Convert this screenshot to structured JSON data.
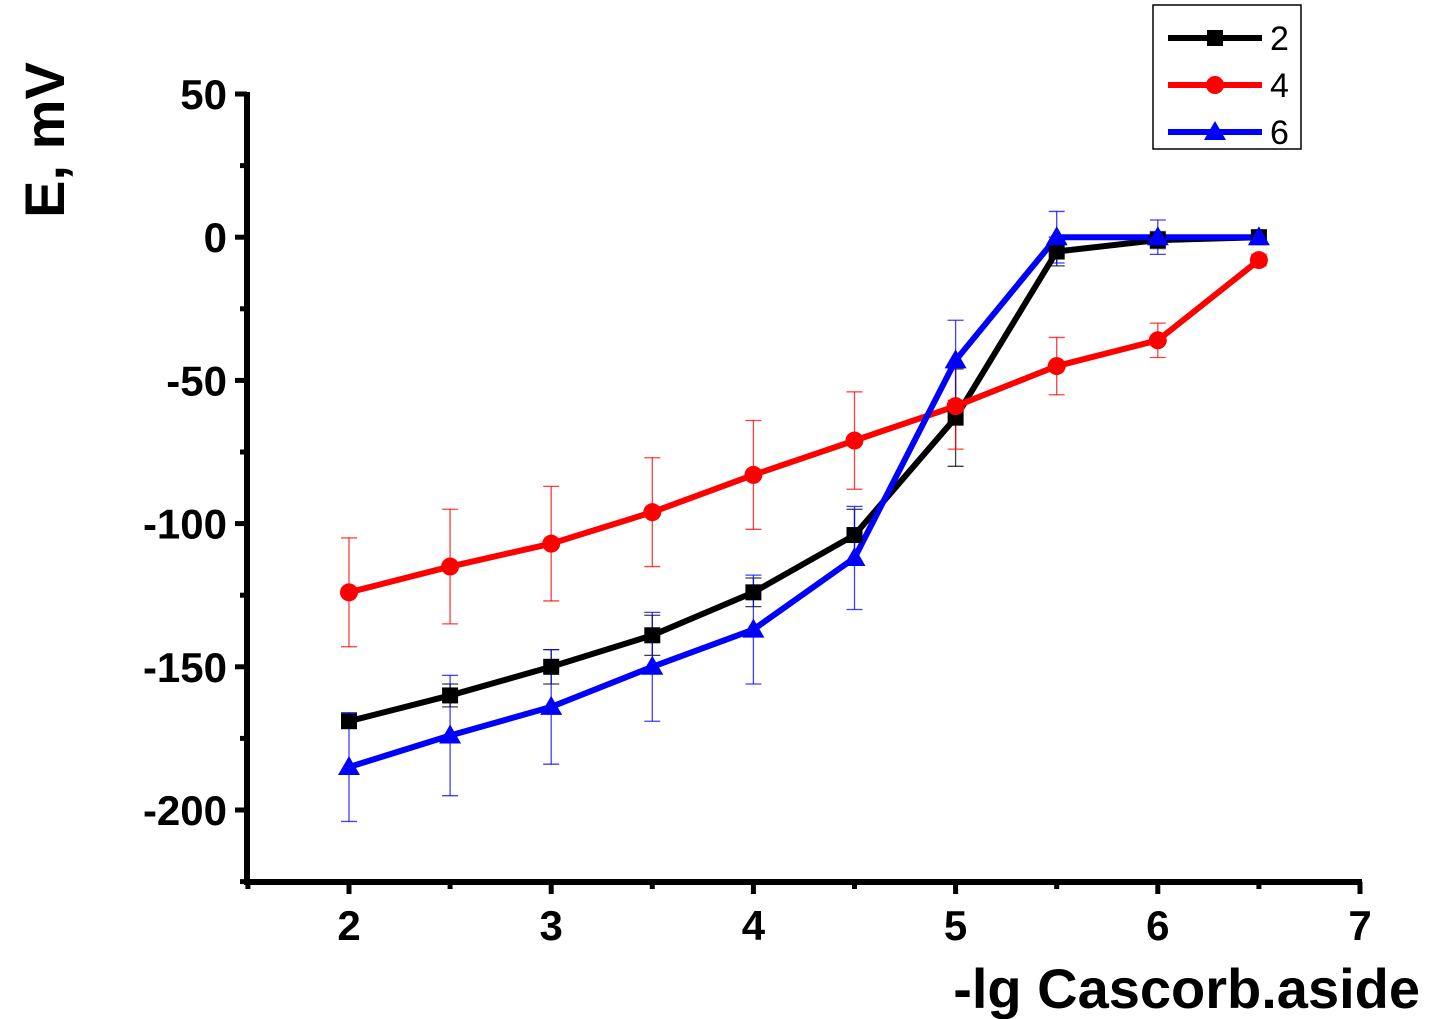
{
  "chart_data": {
    "type": "line",
    "xlabel": "-lg Cascorb.aside",
    "ylabel": "E, mV",
    "xlim": [
      1.5,
      7
    ],
    "ylim": [
      -225,
      50
    ],
    "x_ticks": [
      2,
      3,
      4,
      5,
      6,
      7
    ],
    "y_ticks": [
      50,
      0,
      -50,
      -100,
      -150,
      -200
    ],
    "grid": false,
    "legend_position": "top-right",
    "series": [
      {
        "name": "2",
        "color": "#000000",
        "marker": "square",
        "x": [
          2,
          2.5,
          3,
          3.5,
          4,
          4.5,
          5,
          5.5,
          6,
          6.5
        ],
        "y": [
          -169,
          -160,
          -150,
          -139,
          -124,
          -104,
          -63,
          -5,
          -1,
          0
        ],
        "err": [
          0,
          4,
          6,
          7,
          5,
          9,
          17,
          5,
          3,
          1
        ]
      },
      {
        "name": "4",
        "color": "#ff0000",
        "marker": "circle",
        "x": [
          2,
          2.5,
          3,
          3.5,
          4,
          4.5,
          5,
          5.5,
          6,
          6.5
        ],
        "y": [
          -124,
          -115,
          -107,
          -96,
          -83,
          -71,
          -59,
          -45,
          -36,
          -8
        ],
        "err": [
          19,
          20,
          20,
          19,
          19,
          17,
          15,
          10,
          6,
          2
        ]
      },
      {
        "name": "6",
        "color": "#0000ff",
        "marker": "triangle",
        "x": [
          2,
          2.5,
          3,
          3.5,
          4,
          4.5,
          5,
          5.5,
          6,
          6.5
        ],
        "y": [
          -185,
          -174,
          -164,
          -150,
          -137,
          -112,
          -43,
          0,
          0,
          0
        ],
        "err": [
          19,
          21,
          20,
          19,
          19,
          18,
          14,
          9,
          6,
          2
        ]
      }
    ]
  }
}
